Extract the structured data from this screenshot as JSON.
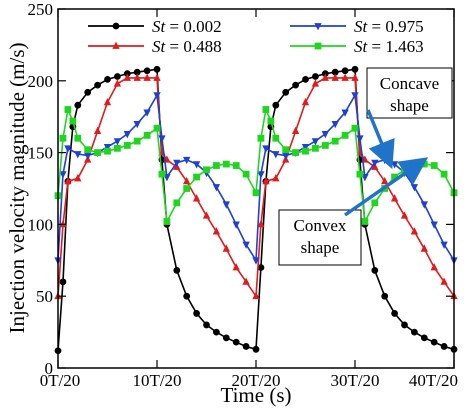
{
  "chart_data": {
    "type": "line",
    "title": "",
    "xlabel": "Time (s)",
    "ylabel": "Injection velocity magnitude (m/s)",
    "xlim": [
      0,
      40
    ],
    "ylim": [
      0,
      250
    ],
    "x_ticks": [
      0,
      10,
      20,
      30,
      40
    ],
    "x_tick_labels": [
      "0T/20",
      "10T/20",
      "20T/20",
      "30T/20",
      "40T/20"
    ],
    "y_ticks": [
      0,
      50,
      100,
      150,
      200,
      250
    ],
    "y_tick_labels": [
      "0",
      "50",
      "100",
      "150",
      "200",
      "250"
    ],
    "grid": false,
    "legend_position": "top",
    "series": [
      {
        "name": "St = 0.002",
        "legend_var": "St",
        "legend_value": " = 0.002",
        "color": "#000000",
        "marker": "circle",
        "x": [
          0,
          0.5,
          1,
          1.5,
          2,
          3,
          4,
          5,
          6,
          7,
          8,
          9,
          10,
          10.5,
          11,
          12,
          13,
          14,
          15,
          16,
          17,
          18,
          19,
          20,
          20.5,
          21,
          21.5,
          22,
          23,
          24,
          25,
          26,
          27,
          28,
          29,
          30,
          30.5,
          31,
          32,
          33,
          34,
          35,
          36,
          37,
          38,
          39,
          40
        ],
        "y": [
          12,
          60,
          130,
          168,
          183,
          192,
          197,
          201,
          203,
          205,
          206,
          207,
          208,
          145,
          100,
          68,
          50,
          38,
          30,
          25,
          21,
          18,
          15,
          13,
          70,
          130,
          168,
          183,
          192,
          197,
          201,
          203,
          205,
          206,
          207,
          208,
          145,
          100,
          68,
          50,
          38,
          30,
          25,
          21,
          18,
          15,
          13
        ]
      },
      {
        "name": "St = 0.488",
        "legend_var": "St",
        "legend_value": " = 0.488",
        "color": "#e31a1c",
        "marker": "triangle",
        "x": [
          0,
          0.5,
          1,
          2,
          3,
          4,
          5,
          6,
          7,
          8,
          9,
          10,
          10.5,
          11,
          12,
          13,
          14,
          15,
          16,
          17,
          18,
          19,
          20,
          20.5,
          21,
          22,
          23,
          24,
          25,
          26,
          27,
          28,
          29,
          30,
          30.5,
          31,
          32,
          33,
          34,
          35,
          36,
          37,
          38,
          39,
          40
        ],
        "y": [
          50,
          100,
          130,
          132,
          145,
          165,
          185,
          198,
          202,
          202,
          202,
          202,
          150,
          145,
          140,
          130,
          118,
          106,
          95,
          83,
          70,
          60,
          50,
          100,
          130,
          132,
          145,
          165,
          185,
          198,
          202,
          202,
          202,
          202,
          150,
          145,
          140,
          130,
          118,
          106,
          95,
          83,
          70,
          60,
          50
        ]
      },
      {
        "name": "St = 0.975",
        "legend_var": "St",
        "legend_value": " = 0.975",
        "color": "#1f3fd6",
        "marker": "downtriangle",
        "x": [
          0,
          0.5,
          1,
          2,
          3,
          4,
          5,
          6,
          7,
          8,
          9,
          10,
          10.5,
          11,
          12,
          13,
          14,
          15,
          16,
          17,
          18,
          19,
          20,
          20.5,
          21,
          22,
          23,
          24,
          25,
          26,
          27,
          28,
          29,
          30,
          30.5,
          31,
          32,
          33,
          34,
          35,
          36,
          37,
          38,
          39,
          40
        ],
        "y": [
          75,
          135,
          153,
          149,
          148,
          150,
          154,
          158,
          163,
          170,
          178,
          190,
          160,
          133,
          143,
          145,
          142,
          136,
          126,
          114,
          100,
          86,
          75,
          135,
          153,
          149,
          148,
          150,
          154,
          158,
          163,
          170,
          178,
          190,
          160,
          133,
          143,
          145,
          142,
          136,
          126,
          114,
          100,
          86,
          75
        ]
      },
      {
        "name": "St = 1.463",
        "legend_var": "St",
        "legend_value": " = 1.463",
        "color": "#1fd61f",
        "marker": "square",
        "x": [
          0,
          0.5,
          1,
          1.5,
          2,
          3,
          4,
          5,
          6,
          7,
          8,
          9,
          10,
          10.5,
          11,
          12,
          13,
          14,
          15,
          16,
          17,
          18,
          19,
          20,
          20.5,
          21,
          21.5,
          22,
          23,
          24,
          25,
          26,
          27,
          28,
          29,
          30,
          30.5,
          31,
          32,
          33,
          34,
          35,
          36,
          37,
          38,
          39,
          40
        ],
        "y": [
          120,
          160,
          180,
          172,
          160,
          152,
          150,
          151,
          153,
          155,
          158,
          162,
          167,
          135,
          102,
          115,
          125,
          133,
          138,
          141,
          142,
          141,
          135,
          122,
          160,
          180,
          172,
          160,
          152,
          150,
          151,
          153,
          155,
          158,
          162,
          167,
          135,
          102,
          115,
          125,
          133,
          138,
          141,
          142,
          141,
          135,
          122
        ]
      }
    ],
    "annotations": [
      {
        "text_lines": [
          "Concave",
          "shape"
        ],
        "arrow_to": [
          33.5,
          143
        ]
      },
      {
        "text_lines": [
          "Convex",
          "shape"
        ],
        "arrow_to": [
          36.8,
          144
        ]
      }
    ]
  }
}
